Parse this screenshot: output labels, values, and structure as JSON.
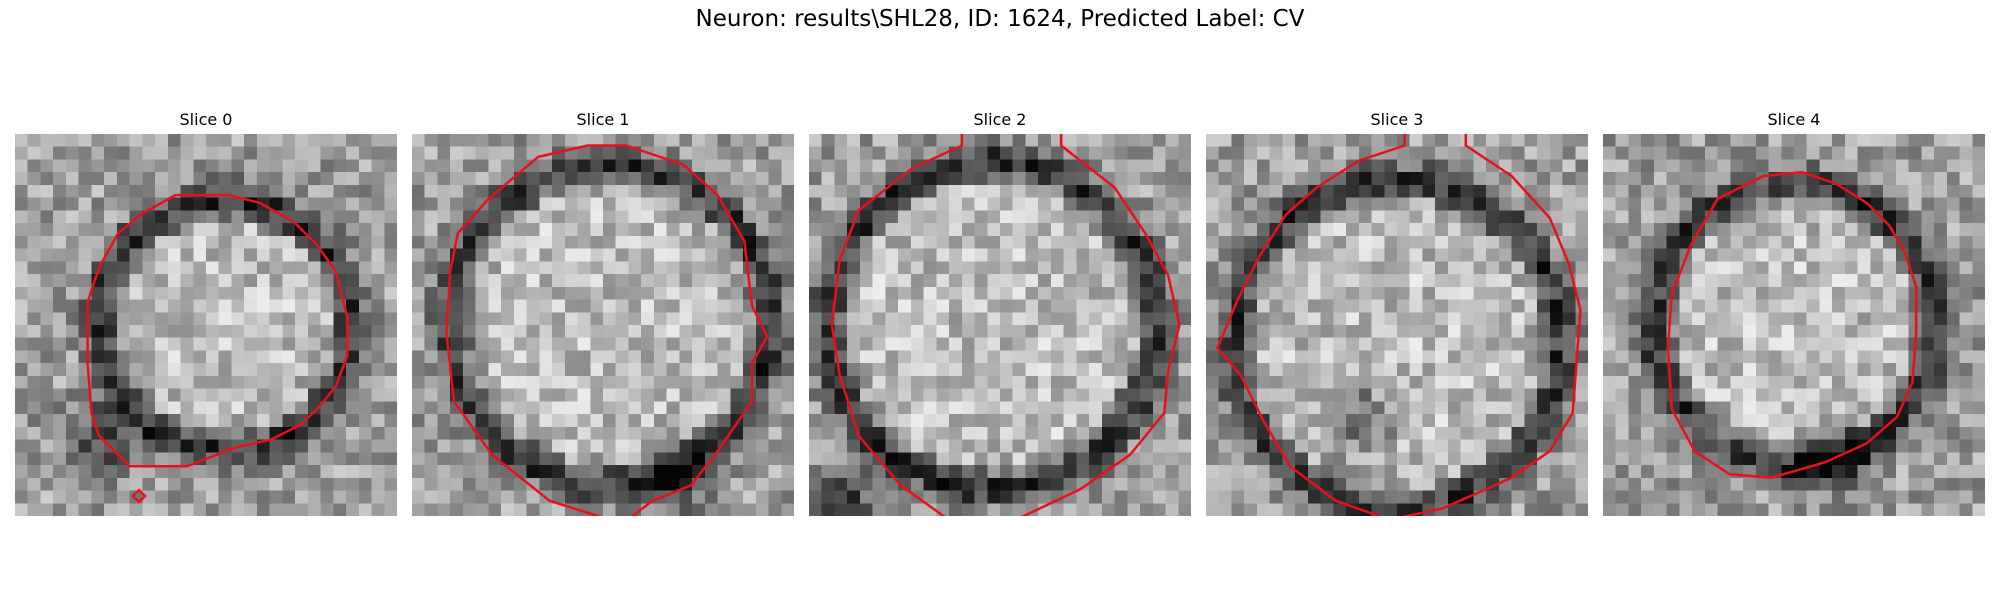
{
  "figure": {
    "title": "Neuron: results\\SHL28, ID: 1624, Predicted Label: CV",
    "contour_color": "#e8111b"
  },
  "panels": [
    {
      "title": "Slice 0"
    },
    {
      "title": "Slice 1"
    },
    {
      "title": "Slice 2"
    },
    {
      "title": "Slice 3"
    },
    {
      "title": "Slice 4"
    }
  ]
}
